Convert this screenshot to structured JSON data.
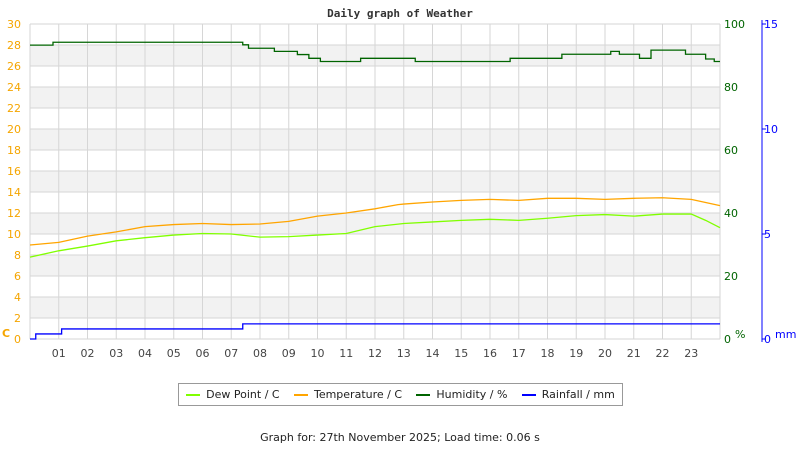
{
  "chart_data": {
    "type": "line",
    "title": "Daily graph of Weather",
    "x_ticks": [
      "01",
      "02",
      "03",
      "04",
      "05",
      "06",
      "07",
      "08",
      "09",
      "10",
      "11",
      "12",
      "13",
      "14",
      "15",
      "16",
      "17",
      "18",
      "19",
      "20",
      "21",
      "22",
      "23"
    ],
    "xlim": [
      0,
      24
    ],
    "grid": true,
    "legend_placement": "bottom",
    "axes": {
      "left": {
        "label": "C",
        "ylim": [
          0,
          30
        ],
        "ticks": [
          0,
          2,
          4,
          6,
          8,
          10,
          12,
          14,
          16,
          18,
          20,
          22,
          24,
          26,
          28,
          30
        ],
        "color": "#f5a500"
      },
      "right": {
        "label": "%",
        "ylim": [
          0,
          100
        ],
        "ticks": [
          0,
          20,
          40,
          60,
          80,
          100
        ],
        "color": "#006400"
      },
      "right2": {
        "label": "mm",
        "ylim": [
          0,
          15
        ],
        "ticks": [
          0,
          5,
          10,
          15
        ],
        "color": "#0000ff"
      }
    },
    "series": [
      {
        "name": "Dew Point / C",
        "axis": "left",
        "color": "#80ff00",
        "step": false,
        "x": [
          0,
          1,
          2,
          3,
          4,
          5,
          6,
          7,
          8,
          9,
          10,
          11,
          12,
          13,
          14,
          15,
          16,
          17,
          18,
          19,
          20,
          21,
          22,
          23,
          23.5,
          24
        ],
        "y": [
          7.8,
          8.4,
          8.85,
          9.35,
          9.65,
          9.9,
          10.05,
          10.0,
          9.7,
          9.75,
          9.9,
          10.05,
          10.7,
          11.0,
          11.15,
          11.3,
          11.4,
          11.3,
          11.5,
          11.75,
          11.85,
          11.7,
          11.9,
          11.9,
          11.3,
          10.6
        ]
      },
      {
        "name": "Temperature / C",
        "axis": "left",
        "color": "#ffa500",
        "step": false,
        "x": [
          0,
          1,
          2,
          3,
          4,
          5,
          6,
          7,
          8,
          9,
          10,
          11,
          12,
          12.8,
          13,
          14,
          15,
          16,
          17,
          18,
          19,
          20,
          21,
          22,
          23,
          23.5,
          24
        ],
        "y": [
          8.95,
          9.2,
          9.8,
          10.2,
          10.7,
          10.9,
          11.0,
          10.9,
          10.95,
          11.2,
          11.7,
          12.0,
          12.4,
          12.8,
          12.85,
          13.05,
          13.2,
          13.3,
          13.2,
          13.4,
          13.4,
          13.3,
          13.4,
          13.45,
          13.3,
          13.0,
          12.7
        ]
      },
      {
        "name": "Humidity / %",
        "axis": "right",
        "color": "#006400",
        "step": true,
        "x": [
          0,
          0.8,
          7.4,
          7.6,
          8.5,
          9.3,
          9.7,
          10.1,
          11.5,
          13.4,
          16.7,
          18.5,
          20.2,
          20.5,
          21.2,
          21.6,
          22.8,
          23.5,
          23.8,
          24
        ],
        "y": [
          93.3,
          94.2,
          93.4,
          92.3,
          91.3,
          90.3,
          89.1,
          88.1,
          89.1,
          88.1,
          89.1,
          90.4,
          91.3,
          90.4,
          89.1,
          91.7,
          90.4,
          88.9,
          88.1,
          88.1
        ]
      },
      {
        "name": "Rainfall / mm",
        "axis": "right2",
        "color": "#0000ff",
        "step": true,
        "x": [
          0,
          0.2,
          1.1,
          7.4,
          24
        ],
        "y": [
          0,
          0.24,
          0.48,
          0.72,
          0.72
        ]
      }
    ]
  },
  "footer": "Graph for: 27th November 2025; Load time: 0.06 s"
}
